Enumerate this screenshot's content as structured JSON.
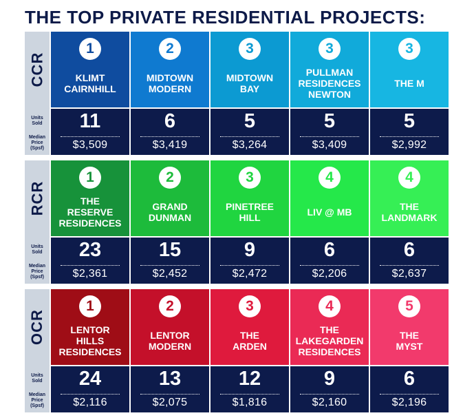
{
  "title": "THE TOP PRIVATE RESIDENTIAL PROJECTS:",
  "labels": {
    "units": "Units\nSold",
    "price": "Median\nPrice\n(Spsf)"
  },
  "sections": [
    {
      "region": "CCR",
      "projects": [
        {
          "rank": "1",
          "name": "KLIMT\nCAIRNHILL",
          "units": "11",
          "price": "$3,509",
          "color": "#0f4c9f",
          "badge_text": "#0f4c9f"
        },
        {
          "rank": "2",
          "name": "MIDTOWN\nMODERN",
          "units": "6",
          "price": "$3,419",
          "color": "#0f7ad0",
          "badge_text": "#0f7ad0"
        },
        {
          "rank": "3",
          "name": "MIDTOWN\nBAY",
          "units": "5",
          "price": "$3,264",
          "color": "#0c9ad2",
          "badge_text": "#0c9ad2"
        },
        {
          "rank": "3",
          "name": "PULLMAN\nRESIDENCES\nNEWTON",
          "units": "5",
          "price": "$3,409",
          "color": "#11aada",
          "badge_text": "#11aada"
        },
        {
          "rank": "3",
          "name": "THE M",
          "units": "5",
          "price": "$2,992",
          "color": "#17b6e2",
          "badge_text": "#17b6e2"
        }
      ]
    },
    {
      "region": "RCR",
      "projects": [
        {
          "rank": "1",
          "name": "THE\nRESERVE\nRESIDENCES",
          "units": "23",
          "price": "$2,361",
          "color": "#17923a",
          "badge_text": "#17923a"
        },
        {
          "rank": "2",
          "name": "GRAND\nDUNMAN",
          "units": "15",
          "price": "$2,452",
          "color": "#1dbb3b",
          "badge_text": "#1dbb3b"
        },
        {
          "rank": "3",
          "name": "PINETREE\nHILL",
          "units": "9",
          "price": "$2,472",
          "color": "#20d540",
          "badge_text": "#20d540"
        },
        {
          "rank": "4",
          "name": "LIV @ MB",
          "units": "6",
          "price": "$2,206",
          "color": "#25e84a",
          "badge_text": "#25e84a"
        },
        {
          "rank": "4",
          "name": "THE\nLANDMARK",
          "units": "6",
          "price": "$2,637",
          "color": "#36ef55",
          "badge_text": "#36ef55"
        }
      ]
    },
    {
      "region": "OCR",
      "projects": [
        {
          "rank": "1",
          "name": "LENTOR\nHILLS\nRESIDENCES",
          "units": "24",
          "price": "$2,116",
          "color": "#9f0d16",
          "badge_text": "#9f0d16"
        },
        {
          "rank": "2",
          "name": "LENTOR\nMODERN",
          "units": "13",
          "price": "$2,075",
          "color": "#c4102a",
          "badge_text": "#c4102a"
        },
        {
          "rank": "3",
          "name": "THE\nARDEN",
          "units": "12",
          "price": "$1,816",
          "color": "#df1a3d",
          "badge_text": "#df1a3d"
        },
        {
          "rank": "4",
          "name": "THE\nLAKEGARDEN\nRESIDENCES",
          "units": "9",
          "price": "$2,160",
          "color": "#ea2a55",
          "badge_text": "#ea2a55"
        },
        {
          "rank": "5",
          "name": "THE\nMYST",
          "units": "6",
          "price": "$2,196",
          "color": "#f23a6c",
          "badge_text": "#f23a6c"
        }
      ]
    }
  ]
}
